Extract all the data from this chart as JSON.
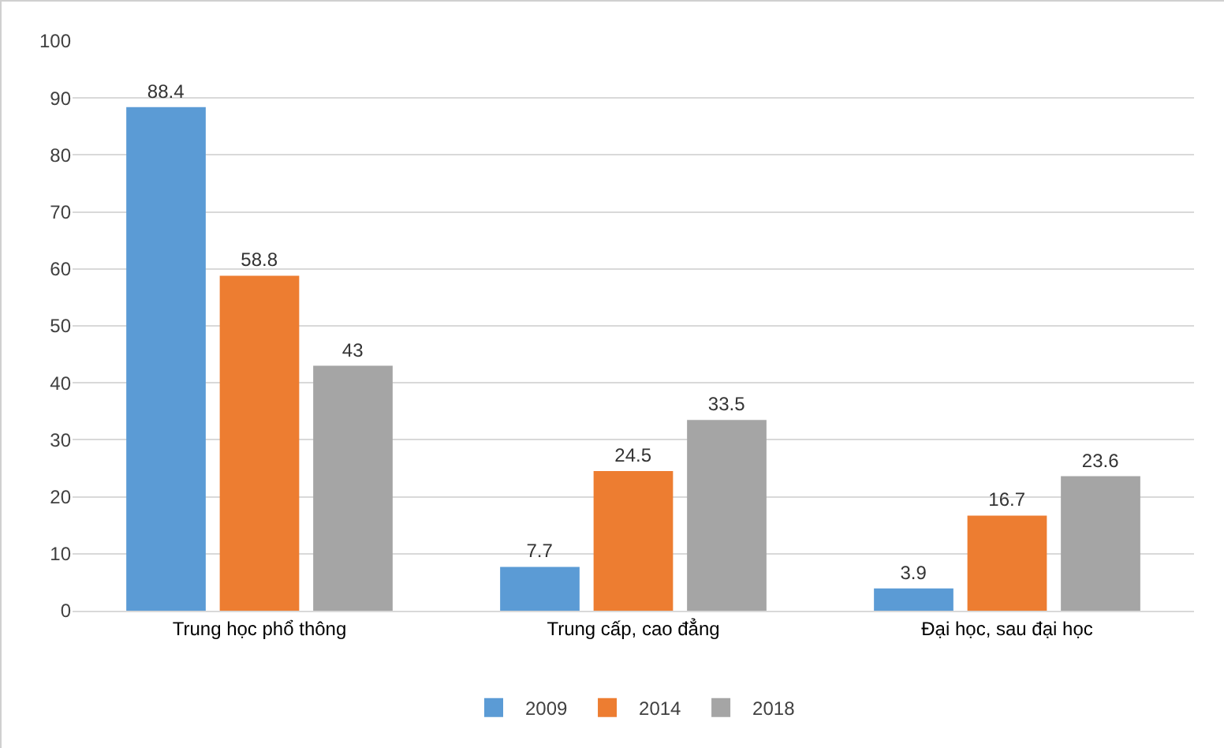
{
  "chart_data": {
    "type": "bar",
    "categories": [
      "Trung học phổ thông",
      "Trung cấp, cao đẳng",
      "Đại học, sau đại học"
    ],
    "series": [
      {
        "name": "2009",
        "color": "#5b9bd5",
        "values": [
          88.4,
          7.7,
          3.9
        ]
      },
      {
        "name": "2014",
        "color": "#ed7d31",
        "values": [
          58.8,
          24.5,
          16.7
        ]
      },
      {
        "name": "2018",
        "color": "#a5a5a5",
        "values": [
          43,
          33.5,
          23.6
        ]
      }
    ],
    "ylim": [
      0,
      100
    ],
    "yticks": [
      0,
      10,
      20,
      30,
      40,
      50,
      60,
      70,
      80,
      90,
      100
    ],
    "grid": "y",
    "legend": "bottom",
    "data_labels": true
  }
}
